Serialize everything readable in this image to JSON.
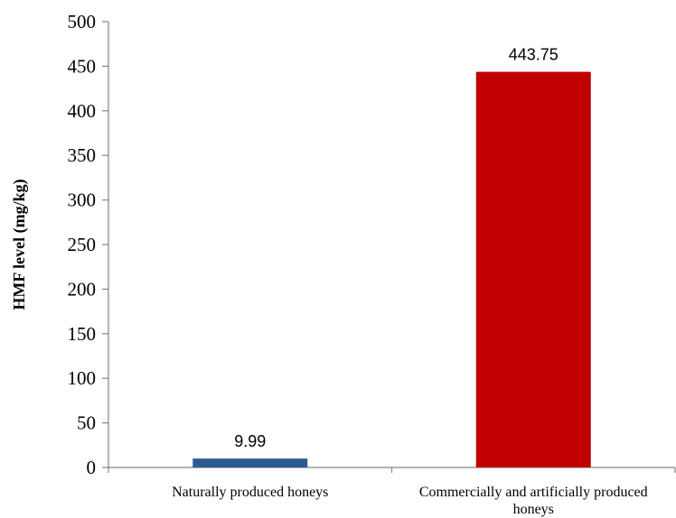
{
  "chart_data": {
    "type": "bar",
    "categories": [
      [
        "Naturally produced  honeys"
      ],
      [
        "Commercially and artificially produced",
        "honeys"
      ]
    ],
    "values": [
      9.99,
      443.75
    ],
    "data_labels": [
      "9.99",
      "443.75"
    ],
    "bar_colors": [
      "#2E5A94",
      "#C00000"
    ],
    "title": "",
    "xlabel": "",
    "ylabel": "HMF level (mg/kg)",
    "ylim": [
      0,
      500
    ],
    "yticks": [
      0,
      50,
      100,
      150,
      200,
      250,
      300,
      350,
      400,
      450,
      500
    ],
    "grid": false,
    "legend": "none"
  }
}
